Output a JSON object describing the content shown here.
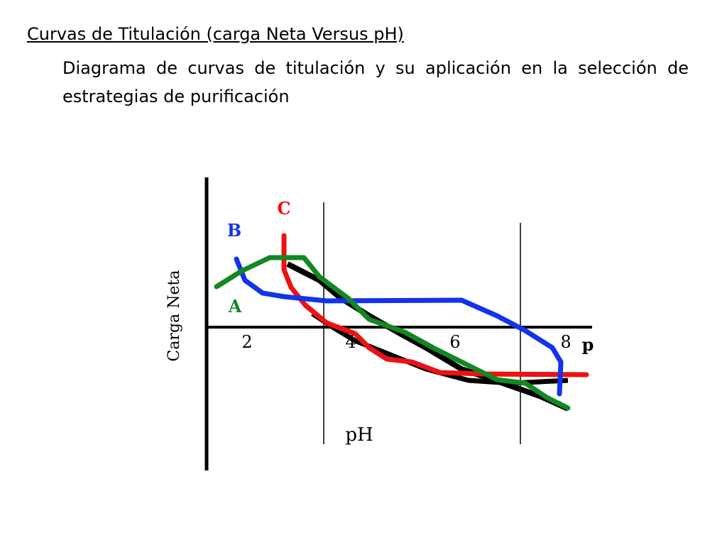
{
  "header": {
    "title": "Curvas de Titulación (carga Neta Versus pH)",
    "subtitle": "Diagrama de curvas de titulación y su aplicación en la selección de estrategias de purificación"
  },
  "diagram": {
    "y_axis_label": "Carga Neta",
    "x_axis_label": "pH",
    "x_tick_labels": [
      "2",
      "4",
      "6",
      "8",
      "p"
    ],
    "curve_labels": [
      "A",
      "B",
      "C"
    ]
  }
}
